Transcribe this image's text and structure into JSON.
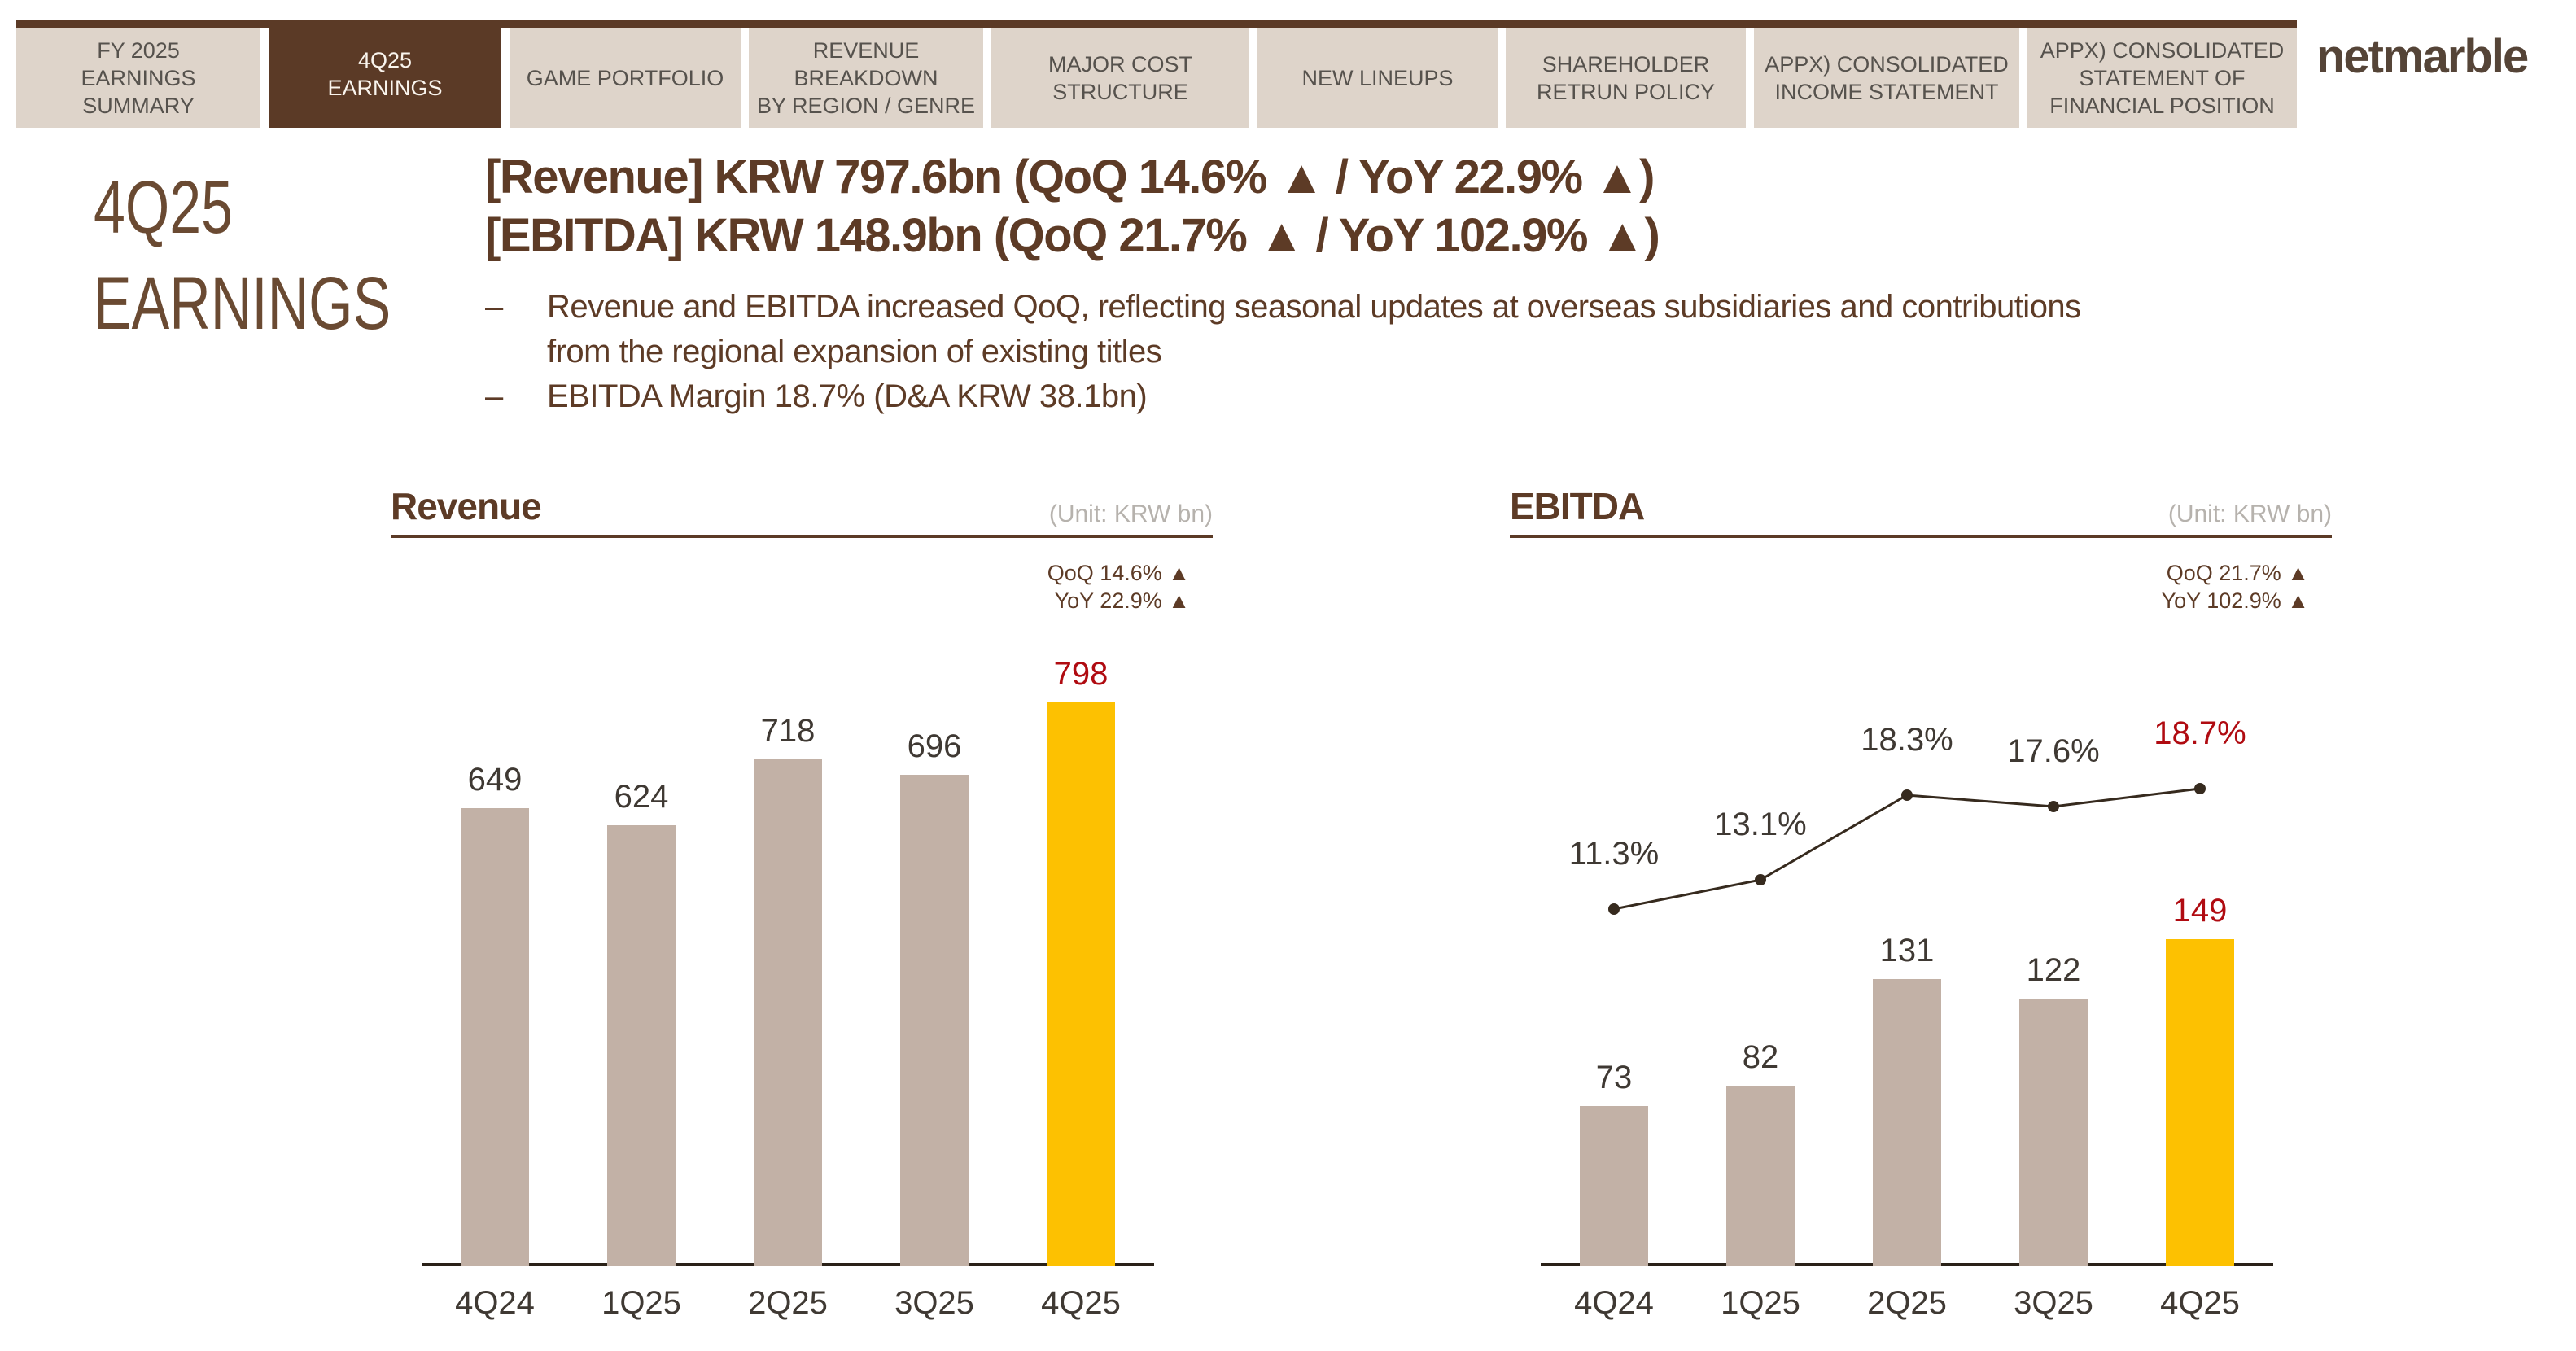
{
  "brand": {
    "logo_text": "netmarble"
  },
  "nav": {
    "tabs": [
      {
        "id": "fy2025-earnings-summary",
        "label": "FY 2025\nEARNINGS\nSUMMARY",
        "active": false
      },
      {
        "id": "4q25-earnings",
        "label": "4Q25\nEARNINGS",
        "active": true
      },
      {
        "id": "game-portfolio",
        "label": "GAME PORTFOLIO",
        "active": false
      },
      {
        "id": "revenue-breakdown-by-region-genre",
        "label": "REVENUE\nBREAKDOWN\nBY REGION / GENRE",
        "active": false
      },
      {
        "id": "major-cost-structure",
        "label": "MAJOR COST\nSTRUCTURE",
        "active": false
      },
      {
        "id": "new-lineups",
        "label": "NEW LINEUPS",
        "active": false
      },
      {
        "id": "shareholder-retrun-policy",
        "label": "SHAREHOLDER\nRETRUN POLICY",
        "active": false
      },
      {
        "id": "appx-consolidated-income-statement",
        "label": "APPX) CONSOLIDATED\nINCOME STATEMENT",
        "active": false
      },
      {
        "id": "appx-consolidated-statement-of-financial-position",
        "label": "APPX) CONSOLIDATED\nSTATEMENT OF\nFINANCIAL POSITION",
        "active": false
      }
    ]
  },
  "header": {
    "page_title_line1": "4Q25",
    "page_title_line2": "EARNINGS",
    "headline_line1": "[Revenue] KRW 797.6bn (QoQ 14.6% ▲ / YoY 22.9% ▲)",
    "headline_line2": "[EBITDA] KRW 148.9bn (QoQ 21.7% ▲ / YoY 102.9% ▲)",
    "bullet_marker": "–",
    "bullets": [
      "Revenue and EBITDA increased QoQ, reflecting seasonal updates at overseas subsidiaries and contributions from the regional expansion of existing titles",
      "EBITDA Margin 18.7% (D&A KRW 38.1bn)"
    ]
  },
  "chart_data": [
    {
      "type": "bar",
      "title": "Revenue",
      "unit_label": "(Unit: KRW bn)",
      "annotation_lines": [
        "QoQ 14.6% ▲",
        "YoY 22.9% ▲"
      ],
      "categories": [
        "4Q24",
        "1Q25",
        "2Q25",
        "3Q25",
        "4Q25"
      ],
      "values": [
        649,
        624,
        718,
        696,
        798
      ],
      "highlight_index": 4,
      "ylim": [
        0,
        900
      ],
      "grid": false,
      "legend": false
    },
    {
      "type": "bar+line",
      "title": "EBITDA",
      "unit_label": "(Unit: KRW bn)",
      "annotation_lines": [
        "QoQ 21.7% ▲",
        "YoY 102.9% ▲"
      ],
      "categories": [
        "4Q24",
        "1Q25",
        "2Q25",
        "3Q25",
        "4Q25"
      ],
      "values": [
        73,
        82,
        131,
        122,
        149
      ],
      "highlight_index": 4,
      "ylim": [
        0,
        290
      ],
      "grid": false,
      "legend": false,
      "line_series": {
        "values": [
          11.3,
          13.1,
          18.3,
          17.6,
          18.7
        ],
        "labels": [
          "11.3%",
          "13.1%",
          "18.3%",
          "17.6%",
          "18.7%"
        ],
        "highlight_index": 4
      }
    }
  ],
  "colors": {
    "brand_brown": "#5b3a26",
    "bar": "#c2b1a6",
    "highlight_bar": "#fdc101",
    "highlight_text": "#b00b11",
    "line": "#362a1e",
    "label": "#3f3933"
  }
}
